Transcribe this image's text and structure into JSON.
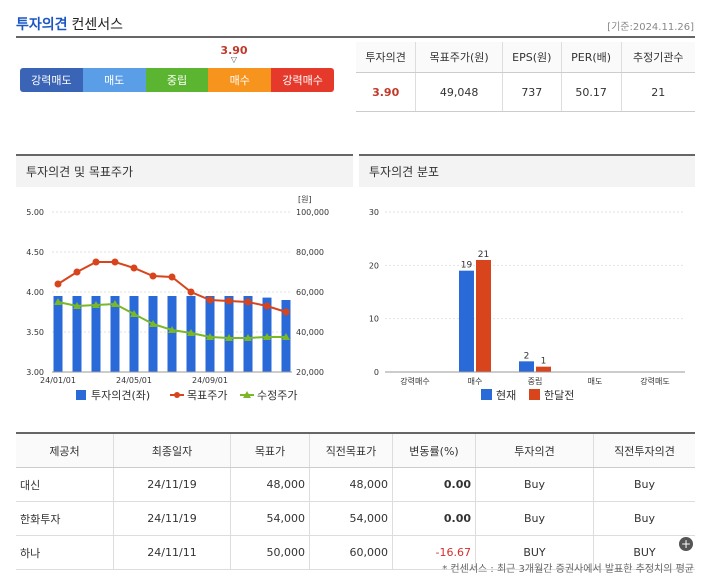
{
  "header": {
    "title_a": "투자의견",
    "title_b": "컨센서스",
    "basis": "[기준:2024.11.26]"
  },
  "scale": {
    "labels": [
      "강력매도",
      "매도",
      "중립",
      "매수",
      "강력매수"
    ],
    "colors": [
      "#3a64b6",
      "#5b9ee8",
      "#5cb531",
      "#f7941d",
      "#e5392b"
    ],
    "value": "3.90"
  },
  "summary": {
    "headers": [
      "투자의견",
      "목표주가(원)",
      "EPS(원)",
      "PER(배)",
      "추정기관수"
    ],
    "values": [
      "3.90",
      "49,048",
      "737",
      "50.17",
      "21"
    ]
  },
  "left_panel_title": "투자의견 및 목표주가",
  "right_panel_title": "투자의견 분포",
  "chart_data": [
    {
      "type": "bar",
      "title": "투자의견 및 목표주가",
      "y_left": {
        "ticks": [
          "5.00",
          "4.50",
          "4.00",
          "3.50",
          "3.00"
        ],
        "range": [
          3.0,
          5.0
        ]
      },
      "y_right": {
        "unit": "[원]",
        "ticks": [
          "100,000",
          "80,000",
          "60,000",
          "40,000",
          "20,000"
        ],
        "range": [
          20000,
          100000
        ]
      },
      "x_ticks": [
        "24/01/01",
        "24/05/01",
        "24/09/01"
      ],
      "series": [
        {
          "name": "투자의견(좌)",
          "kind": "bar",
          "color": "#2a6ad8",
          "values": [
            3.95,
            3.95,
            3.95,
            3.95,
            3.95,
            3.95,
            3.95,
            3.95,
            3.95,
            3.95,
            3.95,
            3.93,
            3.9
          ]
        },
        {
          "name": "목표주가",
          "kind": "line",
          "color": "#d8441c",
          "values": [
            64000,
            70000,
            75000,
            75000,
            72000,
            68000,
            67500,
            60000,
            56000,
            55500,
            55000,
            53000,
            50000
          ]
        },
        {
          "name": "수정주가",
          "kind": "line",
          "color": "#7ab828",
          "values": [
            55000,
            53000,
            53500,
            54000,
            49000,
            44000,
            41000,
            39500,
            37500,
            37000,
            37000,
            37500,
            37500
          ]
        }
      ]
    },
    {
      "type": "bar",
      "title": "투자의견 분포",
      "categories": [
        "강력매수",
        "매수",
        "중립",
        "매도",
        "강력매도"
      ],
      "y_ticks": [
        "30",
        "20",
        "10",
        "0"
      ],
      "ylim": [
        0,
        30
      ],
      "series": [
        {
          "name": "현재",
          "color": "#2a6ad8",
          "values": [
            0,
            19,
            2,
            0,
            0
          ]
        },
        {
          "name": "한달전",
          "color": "#d8441c",
          "values": [
            0,
            21,
            1,
            0,
            0
          ]
        }
      ]
    }
  ],
  "detail": {
    "headers": [
      "제공처",
      "최종일자",
      "목표가",
      "직전목표가",
      "변동률(%)",
      "투자의견",
      "직전투자의견"
    ],
    "rows": [
      [
        "대신",
        "24/11/19",
        "48,000",
        "48,000",
        "0.00",
        "Buy",
        "Buy"
      ],
      [
        "한화투자",
        "24/11/19",
        "54,000",
        "54,000",
        "0.00",
        "Buy",
        "Buy"
      ],
      [
        "하나",
        "24/11/11",
        "50,000",
        "60,000",
        "-16.67",
        "BUY",
        "BUY"
      ]
    ]
  },
  "footnote": "* 컨센서스 : 최근 3개월간 증권사에서 발표한 추정치의 평균"
}
